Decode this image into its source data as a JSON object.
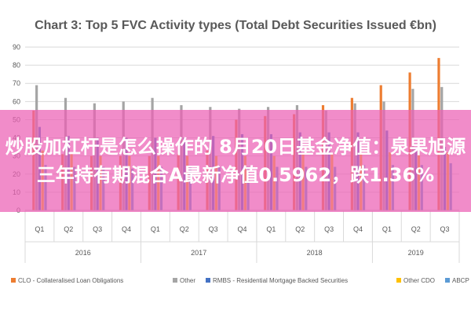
{
  "chart_data": {
    "type": "bar",
    "title": "Chart 3: Top 5 FVC Activity types (Total Debt Securities Issued €bn)",
    "xlabel": "",
    "ylabel": "",
    "ylim": [
      0,
      90
    ],
    "yticks": [
      0,
      10,
      20,
      30,
      40,
      50,
      60,
      70,
      80,
      90
    ],
    "grid": true,
    "legend_position": "bottom",
    "categories": [
      "Q1",
      "Q2",
      "Q3",
      "Q4",
      "Q1",
      "Q2",
      "Q3",
      "Q4",
      "Q1",
      "Q2",
      "Q3",
      "Q4",
      "Q1",
      "Q2",
      "Q3"
    ],
    "groups": [
      {
        "label": "2016",
        "count": 4
      },
      {
        "label": "2017",
        "count": 4
      },
      {
        "label": "2018",
        "count": 4
      },
      {
        "label": "2019",
        "count": 3
      }
    ],
    "series": [
      {
        "name": "CLO - Collateralised Loan Obligations",
        "color": "#ed7d31",
        "values": [
          55,
          31,
          30,
          30,
          30,
          31,
          33,
          50,
          52,
          53,
          58,
          62,
          69,
          76,
          84
        ]
      },
      {
        "name": "Other",
        "color": "#a5a5a5",
        "values": [
          69,
          62,
          59,
          60,
          62,
          58,
          57,
          56,
          57,
          58,
          55,
          59,
          60,
          67,
          68
        ]
      },
      {
        "name": "RMBS - Residential Mortgage Backed Securities",
        "color": "#4472c4",
        "values": [
          46,
          41,
          40,
          40,
          40,
          40,
          41,
          42,
          42,
          43,
          43,
          43,
          44,
          35,
          35
        ]
      },
      {
        "name": "Other CDO",
        "color": "#ffc000",
        "values": [
          33,
          31,
          30,
          30,
          30,
          30,
          30,
          30,
          30,
          31,
          31,
          31,
          32,
          32,
          32
        ]
      },
      {
        "name": "ABCP",
        "color": "#5b9bd5",
        "values": [
          25,
          24,
          24,
          23,
          24,
          24,
          24,
          24,
          24,
          24,
          24,
          25,
          25,
          25,
          26
        ]
      }
    ]
  },
  "overlay": {
    "text": "炒股加杠杆是怎么操作的 8月20日基金净值：泉果旭源三年持有期混合A最新净值0.5962，跌1.36%"
  }
}
